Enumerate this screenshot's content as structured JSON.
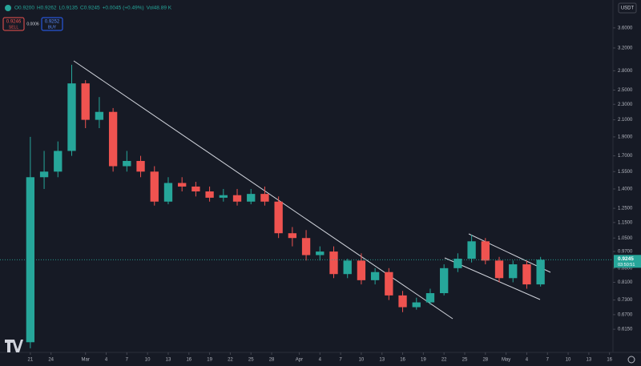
{
  "chart_data": {
    "type": "candlestick",
    "yscale": "log",
    "currency": "USDT",
    "readout": [
      "O0.9200",
      "H0.9262",
      "L0.9135",
      "C0.9245",
      "+0.0045 (+0.49%)",
      "Vol48.89 K"
    ],
    "sell_price": "0.9246",
    "sell_label": "SELL",
    "spread": "0.0006",
    "buy_price": "0.9252",
    "buy_label": "BUY",
    "last_price": {
      "value": 0.9245,
      "label": "0.9245"
    },
    "countdown": "03:50:51",
    "up_color": "#26a69a",
    "down_color": "#ef5350",
    "xlim": [
      -4.4,
      84.5
    ],
    "ylim": [
      0.537,
      4.24
    ],
    "x": [
      0,
      2,
      4,
      6,
      8,
      10,
      12,
      14,
      16,
      18,
      20,
      22,
      24,
      26,
      28,
      30,
      32,
      34,
      36,
      38,
      40,
      42,
      44,
      46,
      48,
      50,
      52,
      54,
      56,
      58,
      60,
      62,
      64,
      66,
      68,
      70,
      72,
      74
    ],
    "open": [
      0.57,
      1.5,
      1.55,
      1.75,
      2.6,
      2.1,
      2.2,
      1.6,
      1.65,
      1.55,
      1.3,
      1.45,
      1.42,
      1.38,
      1.33,
      1.35,
      1.3,
      1.36,
      1.3,
      1.08,
      1.05,
      0.95,
      0.97,
      0.85,
      0.92,
      0.82,
      0.86,
      0.75,
      0.7,
      0.72,
      0.76,
      0.88,
      0.93,
      1.03,
      0.92,
      0.83,
      0.9,
      0.8
    ],
    "high": [
      1.9,
      1.75,
      1.85,
      2.9,
      2.65,
      2.4,
      2.25,
      1.75,
      1.7,
      1.6,
      1.5,
      1.5,
      1.46,
      1.42,
      1.4,
      1.4,
      1.4,
      1.42,
      1.34,
      1.12,
      1.1,
      1.0,
      1.0,
      0.93,
      0.96,
      0.88,
      0.88,
      0.77,
      0.74,
      0.78,
      0.9,
      0.96,
      1.07,
      1.05,
      0.94,
      0.92,
      0.92,
      0.94
    ],
    "low": [
      0.55,
      1.4,
      1.5,
      1.7,
      2.0,
      2.0,
      1.55,
      1.55,
      1.5,
      1.27,
      1.28,
      1.38,
      1.34,
      1.3,
      1.3,
      1.27,
      1.28,
      1.27,
      1.05,
      1.0,
      0.92,
      0.92,
      0.83,
      0.83,
      0.8,
      0.8,
      0.73,
      0.68,
      0.69,
      0.71,
      0.75,
      0.86,
      0.91,
      0.9,
      0.81,
      0.81,
      0.78,
      0.79
    ],
    "close": [
      1.5,
      1.55,
      1.75,
      2.6,
      2.1,
      2.2,
      1.6,
      1.65,
      1.55,
      1.3,
      1.45,
      1.42,
      1.38,
      1.33,
      1.35,
      1.3,
      1.36,
      1.3,
      1.08,
      1.05,
      0.95,
      0.97,
      0.85,
      0.92,
      0.82,
      0.86,
      0.75,
      0.7,
      0.72,
      0.76,
      0.88,
      0.93,
      1.03,
      0.92,
      0.83,
      0.9,
      0.8,
      0.9245
    ],
    "xticks": [
      {
        "value": 0,
        "label": "21"
      },
      {
        "value": 3,
        "label": "24"
      },
      {
        "value": 8,
        "label": "Mar"
      },
      {
        "value": 11,
        "label": "4"
      },
      {
        "value": 14,
        "label": "7"
      },
      {
        "value": 17,
        "label": "10"
      },
      {
        "value": 20,
        "label": "13"
      },
      {
        "value": 23,
        "label": "16"
      },
      {
        "value": 26,
        "label": "19"
      },
      {
        "value": 29,
        "label": "22"
      },
      {
        "value": 32,
        "label": "25"
      },
      {
        "value": 35,
        "label": "28"
      },
      {
        "value": 39,
        "label": "Apr"
      },
      {
        "value": 42,
        "label": "4"
      },
      {
        "value": 45,
        "label": "7"
      },
      {
        "value": 48,
        "label": "10"
      },
      {
        "value": 51,
        "label": "13"
      },
      {
        "value": 54,
        "label": "16"
      },
      {
        "value": 57,
        "label": "19"
      },
      {
        "value": 60,
        "label": "22"
      },
      {
        "value": 63,
        "label": "25"
      },
      {
        "value": 66,
        "label": "28"
      },
      {
        "value": 69,
        "label": "May"
      },
      {
        "value": 72,
        "label": "4"
      },
      {
        "value": 75,
        "label": "7"
      },
      {
        "value": 78,
        "label": "10"
      },
      {
        "value": 81,
        "label": "13"
      },
      {
        "value": 84,
        "label": "16"
      }
    ],
    "yticks": [
      {
        "value": 0.615,
        "label": "0.6150"
      },
      {
        "value": 0.67,
        "label": "0.6700"
      },
      {
        "value": 0.73,
        "label": "0.7300"
      },
      {
        "value": 0.81,
        "label": "0.8100"
      },
      {
        "value": 0.88,
        "label": "0.8800"
      },
      {
        "value": 0.97,
        "label": "0.9700"
      },
      {
        "value": 1.05,
        "label": "1.0500"
      },
      {
        "value": 1.15,
        "label": "1.1500"
      },
      {
        "value": 1.25,
        "label": "1.2500"
      },
      {
        "value": 1.4,
        "label": "1.4000"
      },
      {
        "value": 1.55,
        "label": "1.5500"
      },
      {
        "value": 1.7,
        "label": "1.7000"
      },
      {
        "value": 1.9,
        "label": "1.9000"
      },
      {
        "value": 2.1,
        "label": "2.1000"
      },
      {
        "value": 2.3,
        "label": "2.3000"
      },
      {
        "value": 2.5,
        "label": "2.5000"
      },
      {
        "value": 2.8,
        "label": "2.8000"
      },
      {
        "value": 3.2,
        "label": "3.2000"
      },
      {
        "value": 3.6,
        "label": "3.6000"
      }
    ]
  }
}
